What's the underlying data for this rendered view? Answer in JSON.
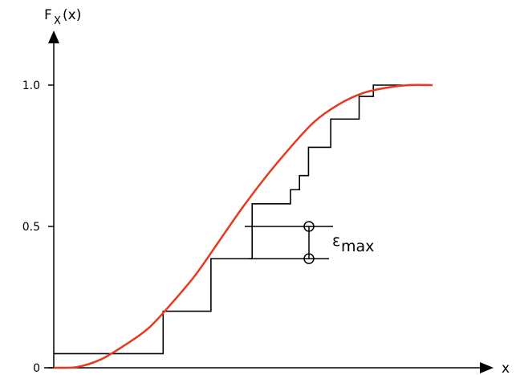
{
  "chart_data": {
    "type": "line",
    "title": "",
    "xlabel": "x",
    "ylabel": {
      "main": "F",
      "sub": "X",
      "suffix": "(x)"
    },
    "yticks": [
      {
        "value": 0,
        "label": "0"
      },
      {
        "value": 0.5,
        "label": "0.5"
      },
      {
        "value": 1.0,
        "label": "1.0"
      }
    ],
    "xlim": [
      0,
      1
    ],
    "ylim": [
      0,
      1.1
    ],
    "grid": false,
    "colors": {
      "theoretical": "#e8391f",
      "empirical": "#000000",
      "axes": "#000000"
    },
    "series": [
      {
        "kind": "step",
        "x": [
          0,
          0.231,
          0.332,
          0.419,
          0.5,
          0.519,
          0.538,
          0.585,
          0.645,
          0.675,
          0.713,
          0.737
        ],
        "values": [
          0.05,
          0.2,
          0.386,
          0.58,
          0.63,
          0.68,
          0.78,
          0.88,
          0.96,
          1.0,
          1.0,
          1.0
        ],
        "x_end": 0.737
      },
      {
        "kind": "curve",
        "x": [
          0.0,
          0.05,
          0.1,
          0.15,
          0.2,
          0.25,
          0.3,
          0.35,
          0.4,
          0.45,
          0.5,
          0.55,
          0.6,
          0.65,
          0.7,
          0.75,
          0.8
        ],
        "values": [
          0.0,
          0.003,
          0.03,
          0.08,
          0.14,
          0.23,
          0.33,
          0.45,
          0.57,
          0.68,
          0.78,
          0.87,
          0.93,
          0.97,
          0.99,
          1.0,
          1.0
        ]
      }
    ],
    "annotation": {
      "label_main": "ε",
      "label_sub": "max",
      "x": 0.5,
      "y_top": 0.5,
      "y_bottom": 0.386
    }
  }
}
